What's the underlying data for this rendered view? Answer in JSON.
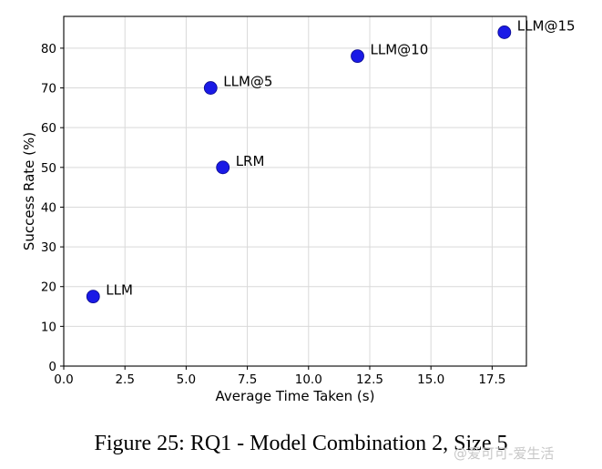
{
  "caption": "Figure 25: RQ1 - Model Combination 2, Size 5",
  "watermark": "@爱可可-爱生活",
  "chart_data": {
    "type": "scatter",
    "title": "",
    "xlabel": "Average Time Taken (s)",
    "ylabel": "Success Rate (%)",
    "xlim": [
      0,
      18.9
    ],
    "ylim": [
      0,
      88
    ],
    "xticks": [
      0.0,
      2.5,
      5.0,
      7.5,
      10.0,
      12.5,
      15.0,
      17.5
    ],
    "xtick_labels": [
      "0.0",
      "2.5",
      "5.0",
      "7.5",
      "10.0",
      "12.5",
      "15.0",
      "17.5"
    ],
    "yticks": [
      0,
      10,
      20,
      30,
      40,
      50,
      60,
      70,
      80
    ],
    "ytick_labels": [
      "0",
      "10",
      "20",
      "30",
      "40",
      "50",
      "60",
      "70",
      "80"
    ],
    "grid": true,
    "marker_color": "#1a1ae6",
    "points": [
      {
        "label": "LLM",
        "x": 1.2,
        "y": 17.5
      },
      {
        "label": "LRM",
        "x": 6.5,
        "y": 50
      },
      {
        "label": "LLM@5",
        "x": 6.0,
        "y": 70
      },
      {
        "label": "LLM@10",
        "x": 12.0,
        "y": 78
      },
      {
        "label": "LLM@15",
        "x": 18.0,
        "y": 84
      }
    ]
  }
}
